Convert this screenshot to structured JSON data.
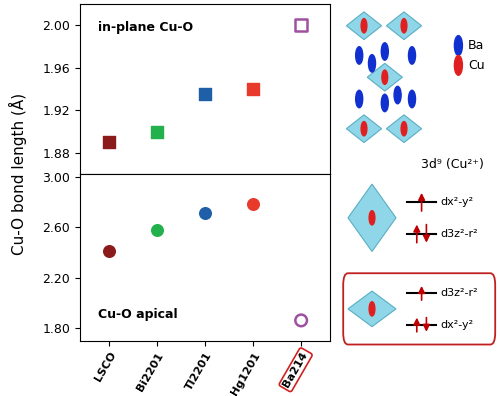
{
  "chart_data": [
    {
      "type": "scatter",
      "annotation": "in-plane Cu-O",
      "ylabel": "Cu-O bond length (Å)",
      "categories": [
        "LSCO",
        "Bi2201",
        "Tl2201",
        "Hg1201",
        "Ba214"
      ],
      "values": [
        1.89,
        1.9,
        1.935,
        1.94,
        2.0
      ],
      "colors": [
        "#8b1a1a",
        "#22b14c",
        "#1f5fa8",
        "#e8392b",
        "#a050a0"
      ],
      "marker": "square",
      "tick_labels": "y",
      "ylim": [
        1.86,
        2.02
      ],
      "yticks": [
        1.88,
        1.92,
        1.96,
        {
          "value": 2.0,
          "label": "2.00"
        }
      ]
    },
    {
      "type": "scatter",
      "annotation": "Cu-O apical",
      "categories": [
        "LSCO",
        "Bi2201",
        "Tl2201",
        "Hg1201",
        "Ba214"
      ],
      "values": [
        2.41,
        2.58,
        2.71,
        2.78,
        1.86
      ],
      "colors": [
        "#8b1a1a",
        "#22b14c",
        "#1f5fa8",
        "#e8392b",
        "#a050a0"
      ],
      "marker": "circle",
      "ylim": [
        1.7,
        3.02
      ],
      "yticks": [
        {
          "value": 1.8,
          "label": "1.80"
        },
        {
          "value": 2.2,
          "label": "2.20"
        },
        {
          "value": 2.6,
          "label": "2.60"
        },
        {
          "value": 3.0,
          "label": "3.00"
        }
      ]
    }
  ],
  "diagram": {
    "atoms": [
      {
        "label": "Ba",
        "color": "#1030d0"
      },
      {
        "label": "Cu",
        "color": "#e02020"
      }
    ],
    "configuration": "3d⁹ (Cu²⁺)",
    "elongated": {
      "upper": "dx²-y²",
      "lower": "d3z²-r²"
    },
    "compressed": {
      "upper": "d3z²-r²",
      "lower": "dx²-y²"
    }
  }
}
